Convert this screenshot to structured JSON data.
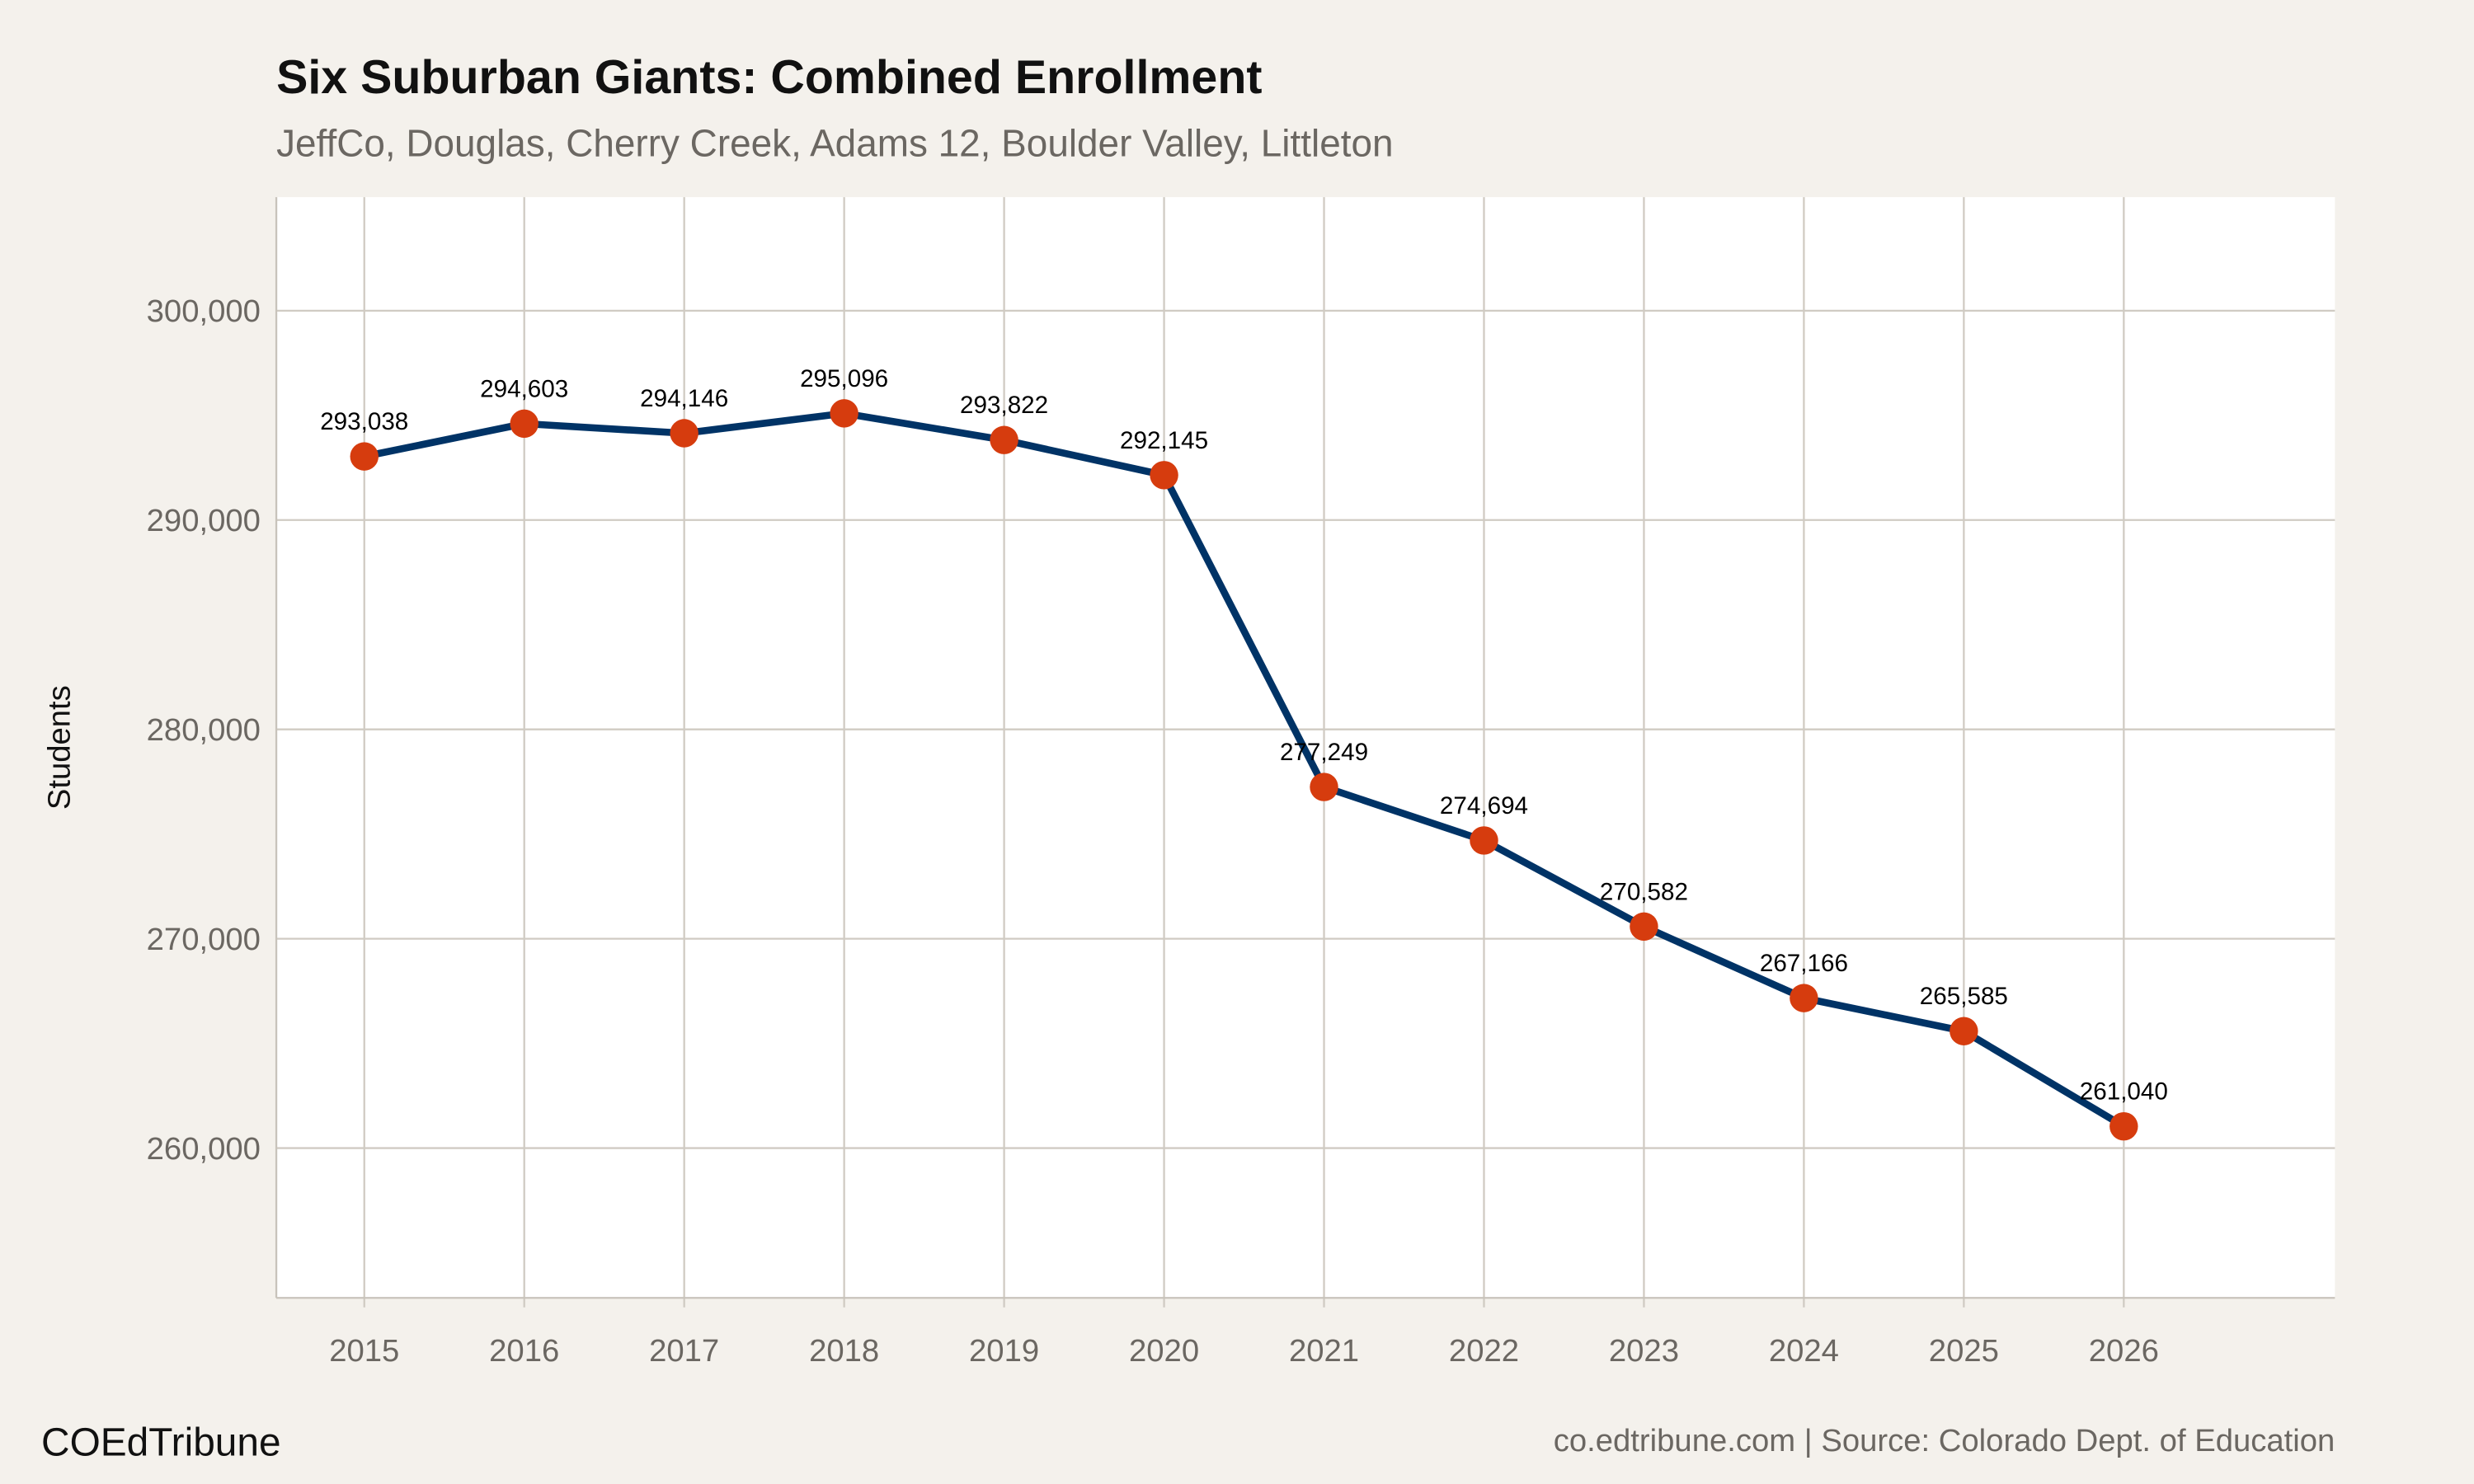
{
  "chart_data": {
    "type": "line",
    "title": "Six Suburban Giants: Combined Enrollment",
    "subtitle": "JeffCo, Douglas, Cherry Creek, Adams 12, Boulder Valley, Littleton",
    "xlabel": "",
    "ylabel": "Students",
    "x": [
      "2015",
      "2016",
      "2017",
      "2018",
      "2019",
      "2020",
      "2021",
      "2022",
      "2023",
      "2024",
      "2025",
      "2026"
    ],
    "series": [
      {
        "values": [
          293038,
          294603,
          294146,
          295096,
          293822,
          292145,
          277249,
          274694,
          270582,
          267166,
          265585,
          261040
        ]
      }
    ],
    "data_labels": [
      "293,038",
      "294,603",
      "294,146",
      "295,096",
      "293,822",
      "292,145",
      "277,249",
      "274,694",
      "270,582",
      "267,166",
      "265,585",
      "261,040"
    ],
    "yticks": [
      260000,
      270000,
      280000,
      290000,
      300000
    ],
    "ytick_labels": [
      "260,000",
      "270,000",
      "280,000",
      "290,000",
      "300,000"
    ],
    "ylim": [
      252844,
      305424
    ],
    "xlim": [
      2014.45,
      2027.32
    ],
    "grid": true,
    "legend": "none",
    "colors": {
      "line": "#003366",
      "points": "#d63c0e",
      "panel": "#ffffff",
      "background": "#f4f1ec",
      "grid": "#d0cbc3"
    }
  },
  "footer": {
    "brand": "COEdTribune",
    "source": "co.edtribune.com | Source: Colorado Dept. of Education"
  }
}
